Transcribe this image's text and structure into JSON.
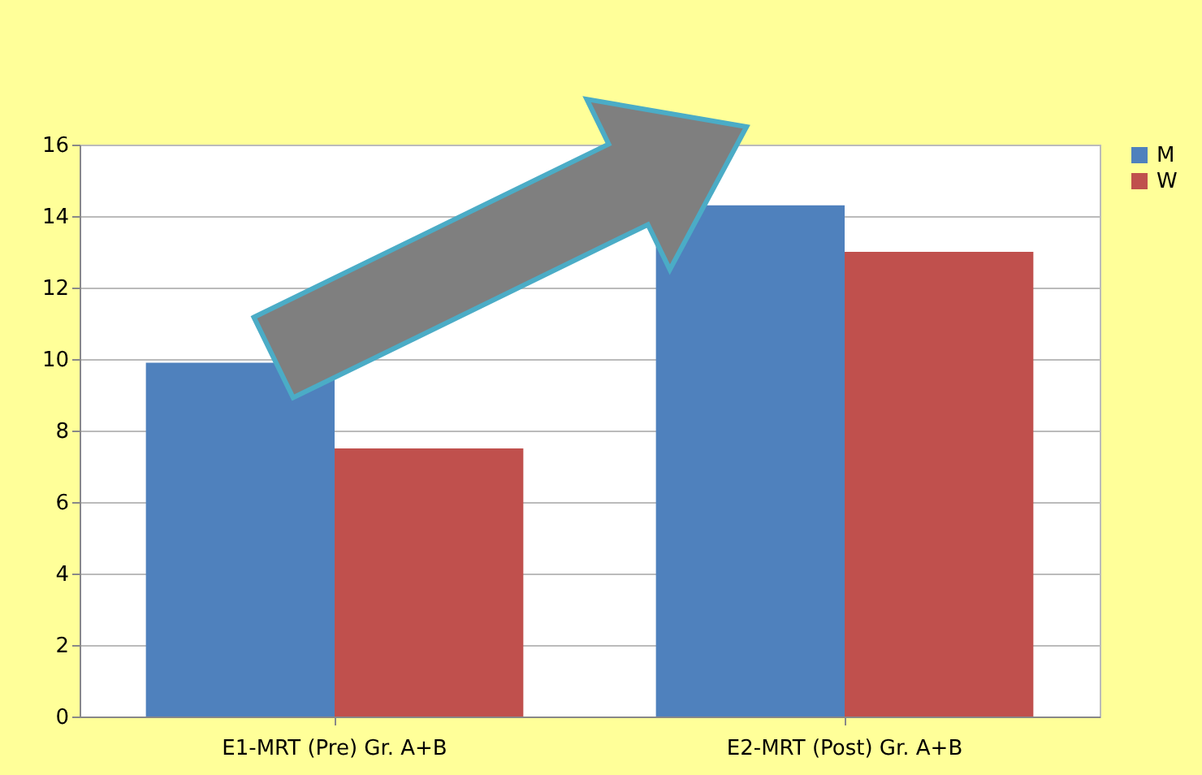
{
  "chart_data": {
    "type": "bar",
    "categories": [
      "E1-MRT (Pre) Gr. A+B",
      "E2-MRT (Post) Gr. A+B"
    ],
    "series": [
      {
        "name": "M",
        "color": "#4f81bd",
        "values": [
          9.9,
          14.3
        ]
      },
      {
        "name": "W",
        "color": "#c0504d",
        "values": [
          7.5,
          13.0
        ]
      }
    ],
    "ylim": [
      0,
      16
    ],
    "yticks": [
      0,
      2,
      4,
      6,
      8,
      10,
      12,
      14,
      16
    ],
    "grid": "y",
    "legend": "right"
  }
}
